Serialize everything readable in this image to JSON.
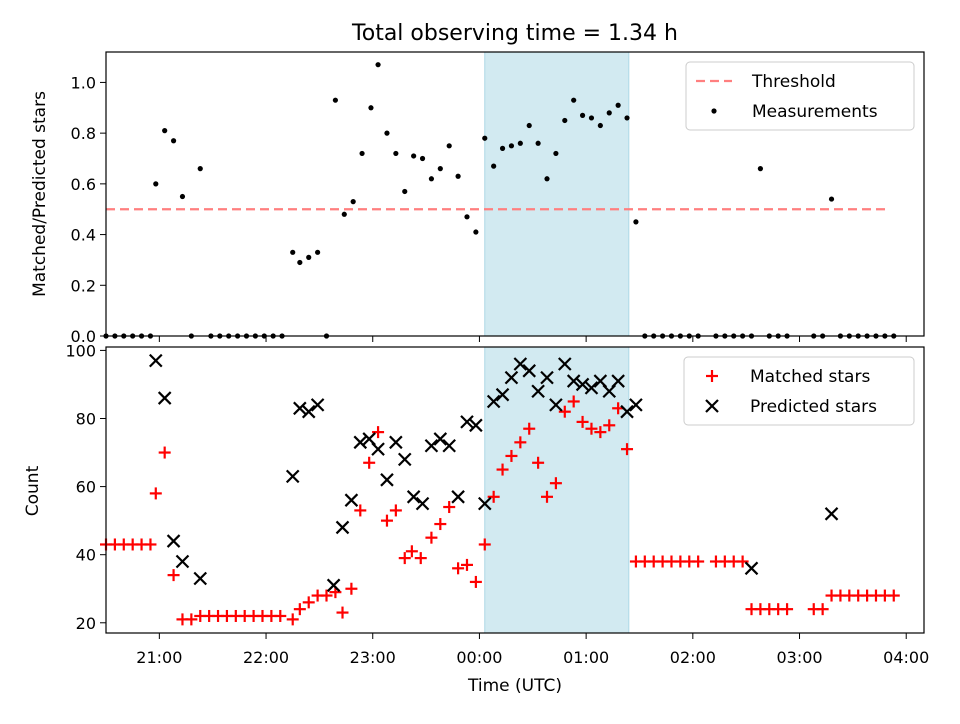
{
  "title": "Total observing time = 1.34 h",
  "colors": {
    "threshold": "#ff7f7f",
    "measurements": "#000000",
    "matched": "#ff0000",
    "predicted": "#000000",
    "span": "#add8e6"
  },
  "chart_data": [
    {
      "type": "scatter",
      "ylabel": "Matched/Predicted stars",
      "xlim": [
        "20:30",
        "04:10"
      ],
      "ylim": [
        0,
        1.12
      ],
      "yticks": [
        "0.0",
        "0.2",
        "0.4",
        "0.6",
        "0.8",
        "1.0"
      ],
      "highlight_span": [
        "00:03",
        "01:24"
      ],
      "threshold": {
        "y": 0.5,
        "x": [
          "20:30",
          "03:50"
        ]
      },
      "legend": {
        "placement": "top-right",
        "entries": [
          "Threshold",
          "Measurements"
        ]
      },
      "series": [
        {
          "name": "Measurements",
          "points": [
            [
              "20:30",
              0
            ],
            [
              "20:35",
              0
            ],
            [
              "20:40",
              0
            ],
            [
              "20:45",
              0
            ],
            [
              "20:50",
              0
            ],
            [
              "20:55",
              0
            ],
            [
              "20:58",
              0.6
            ],
            [
              "21:03",
              0.81
            ],
            [
              "21:08",
              0.77
            ],
            [
              "21:13",
              0.55
            ],
            [
              "21:18",
              0
            ],
            [
              "21:23",
              0.66
            ],
            [
              "21:29",
              0
            ],
            [
              "21:34",
              0
            ],
            [
              "21:39",
              0
            ],
            [
              "21:44",
              0
            ],
            [
              "21:49",
              0
            ],
            [
              "21:54",
              0
            ],
            [
              "21:59",
              0
            ],
            [
              "22:04",
              0
            ],
            [
              "22:09",
              0
            ],
            [
              "22:15",
              0.33
            ],
            [
              "22:19",
              0.29
            ],
            [
              "22:24",
              0.31
            ],
            [
              "22:29",
              0.33
            ],
            [
              "22:34",
              0
            ],
            [
              "22:39",
              0.93
            ],
            [
              "22:44",
              0.48
            ],
            [
              "22:49",
              0.53
            ],
            [
              "22:54",
              0.72
            ],
            [
              "22:59",
              0.9
            ],
            [
              "23:03",
              1.07
            ],
            [
              "23:08",
              0.8
            ],
            [
              "23:13",
              0.72
            ],
            [
              "23:18",
              0.57
            ],
            [
              "23:23",
              0.71
            ],
            [
              "23:28",
              0.7
            ],
            [
              "23:33",
              0.62
            ],
            [
              "23:38",
              0.66
            ],
            [
              "23:43",
              0.75
            ],
            [
              "23:48",
              0.63
            ],
            [
              "23:53",
              0.47
            ],
            [
              "23:58",
              0.41
            ],
            [
              "00:03",
              0.78
            ],
            [
              "00:08",
              0.67
            ],
            [
              "00:13",
              0.74
            ],
            [
              "00:18",
              0.75
            ],
            [
              "00:23",
              0.76
            ],
            [
              "00:28",
              0.83
            ],
            [
              "00:33",
              0.76
            ],
            [
              "00:38",
              0.62
            ],
            [
              "00:43",
              0.72
            ],
            [
              "00:48",
              0.85
            ],
            [
              "00:53",
              0.93
            ],
            [
              "00:58",
              0.87
            ],
            [
              "01:03",
              0.86
            ],
            [
              "01:08",
              0.83
            ],
            [
              "01:13",
              0.88
            ],
            [
              "01:18",
              0.91
            ],
            [
              "01:23",
              0.86
            ],
            [
              "01:28",
              0.45
            ],
            [
              "01:33",
              0
            ],
            [
              "01:38",
              0
            ],
            [
              "01:43",
              0
            ],
            [
              "01:48",
              0
            ],
            [
              "01:53",
              0
            ],
            [
              "01:58",
              0
            ],
            [
              "02:03",
              0
            ],
            [
              "02:13",
              0
            ],
            [
              "02:18",
              0
            ],
            [
              "02:23",
              0
            ],
            [
              "02:28",
              0
            ],
            [
              "02:33",
              0
            ],
            [
              "02:38",
              0.66
            ],
            [
              "02:43",
              0
            ],
            [
              "02:48",
              0
            ],
            [
              "02:53",
              0
            ],
            [
              "03:08",
              0
            ],
            [
              "03:13",
              0
            ],
            [
              "03:18",
              0.54
            ],
            [
              "03:23",
              0
            ],
            [
              "03:28",
              0
            ],
            [
              "03:33",
              0
            ],
            [
              "03:38",
              0
            ],
            [
              "03:43",
              0
            ],
            [
              "03:48",
              0
            ],
            [
              "03:53",
              0
            ]
          ]
        }
      ]
    },
    {
      "type": "scatter",
      "xlabel": "Time (UTC)",
      "ylabel": "Count",
      "xlim": [
        "20:30",
        "04:10"
      ],
      "ylim": [
        17,
        101
      ],
      "yticks": [
        "20",
        "40",
        "60",
        "80",
        "100"
      ],
      "xticks": [
        "21:00",
        "22:00",
        "23:00",
        "00:00",
        "01:00",
        "02:00",
        "03:00",
        "04:00"
      ],
      "highlight_span": [
        "00:03",
        "01:24"
      ],
      "legend": {
        "placement": "top-right",
        "entries": [
          "Matched stars",
          "Predicted stars"
        ]
      },
      "series": [
        {
          "name": "Matched stars",
          "marker": "plus",
          "points": [
            [
              "20:30",
              43
            ],
            [
              "20:35",
              43
            ],
            [
              "20:40",
              43
            ],
            [
              "20:45",
              43
            ],
            [
              "20:50",
              43
            ],
            [
              "20:55",
              43
            ],
            [
              "20:58",
              58
            ],
            [
              "21:03",
              70
            ],
            [
              "21:08",
              34
            ],
            [
              "21:13",
              21
            ],
            [
              "21:18",
              21
            ],
            [
              "21:23",
              22
            ],
            [
              "21:28",
              22
            ],
            [
              "21:33",
              22
            ],
            [
              "21:38",
              22
            ],
            [
              "21:43",
              22
            ],
            [
              "21:48",
              22
            ],
            [
              "21:53",
              22
            ],
            [
              "21:58",
              22
            ],
            [
              "22:03",
              22
            ],
            [
              "22:08",
              22
            ],
            [
              "22:15",
              21
            ],
            [
              "22:19",
              24
            ],
            [
              "22:24",
              26
            ],
            [
              "22:29",
              28
            ],
            [
              "22:34",
              28
            ],
            [
              "22:39",
              29
            ],
            [
              "22:43",
              23
            ],
            [
              "22:48",
              30
            ],
            [
              "22:53",
              53
            ],
            [
              "22:58",
              67
            ],
            [
              "23:03",
              76
            ],
            [
              "23:08",
              50
            ],
            [
              "23:13",
              53
            ],
            [
              "23:18",
              39
            ],
            [
              "23:22",
              41
            ],
            [
              "23:27",
              39
            ],
            [
              "23:33",
              45
            ],
            [
              "23:38",
              49
            ],
            [
              "23:43",
              54
            ],
            [
              "23:48",
              36
            ],
            [
              "23:53",
              37
            ],
            [
              "23:58",
              32
            ],
            [
              "00:03",
              43
            ],
            [
              "00:08",
              57
            ],
            [
              "00:13",
              65
            ],
            [
              "00:18",
              69
            ],
            [
              "00:23",
              73
            ],
            [
              "00:28",
              77
            ],
            [
              "00:33",
              67
            ],
            [
              "00:38",
              57
            ],
            [
              "00:43",
              61
            ],
            [
              "00:48",
              82
            ],
            [
              "00:53",
              85
            ],
            [
              "00:58",
              79
            ],
            [
              "01:03",
              77
            ],
            [
              "01:08",
              76
            ],
            [
              "01:13",
              78
            ],
            [
              "01:18",
              83
            ],
            [
              "01:23",
              71
            ],
            [
              "01:28",
              38
            ],
            [
              "01:33",
              38
            ],
            [
              "01:38",
              38
            ],
            [
              "01:43",
              38
            ],
            [
              "01:48",
              38
            ],
            [
              "01:53",
              38
            ],
            [
              "01:58",
              38
            ],
            [
              "02:03",
              38
            ],
            [
              "02:13",
              38
            ],
            [
              "02:18",
              38
            ],
            [
              "02:23",
              38
            ],
            [
              "02:28",
              38
            ],
            [
              "02:33",
              24
            ],
            [
              "02:38",
              24
            ],
            [
              "02:43",
              24
            ],
            [
              "02:48",
              24
            ],
            [
              "02:53",
              24
            ],
            [
              "03:08",
              24
            ],
            [
              "03:13",
              24
            ],
            [
              "03:18",
              28
            ],
            [
              "03:23",
              28
            ],
            [
              "03:28",
              28
            ],
            [
              "03:33",
              28
            ],
            [
              "03:38",
              28
            ],
            [
              "03:43",
              28
            ],
            [
              "03:48",
              28
            ],
            [
              "03:53",
              28
            ]
          ]
        },
        {
          "name": "Predicted stars",
          "marker": "x",
          "points": [
            [
              "20:58",
              97
            ],
            [
              "21:03",
              86
            ],
            [
              "21:08",
              44
            ],
            [
              "21:13",
              38
            ],
            [
              "21:23",
              33
            ],
            [
              "22:15",
              63
            ],
            [
              "22:19",
              83
            ],
            [
              "22:24",
              82
            ],
            [
              "22:29",
              84
            ],
            [
              "22:38",
              31
            ],
            [
              "22:43",
              48
            ],
            [
              "22:48",
              56
            ],
            [
              "22:53",
              73
            ],
            [
              "22:58",
              74
            ],
            [
              "23:03",
              71
            ],
            [
              "23:08",
              62
            ],
            [
              "23:13",
              73
            ],
            [
              "23:18",
              68
            ],
            [
              "23:23",
              57
            ],
            [
              "23:28",
              55
            ],
            [
              "23:33",
              72
            ],
            [
              "23:38",
              74
            ],
            [
              "23:43",
              72
            ],
            [
              "23:48",
              57
            ],
            [
              "23:53",
              79
            ],
            [
              "23:58",
              78
            ],
            [
              "00:03",
              55
            ],
            [
              "00:08",
              85
            ],
            [
              "00:13",
              87
            ],
            [
              "00:18",
              92
            ],
            [
              "00:23",
              96
            ],
            [
              "00:28",
              94
            ],
            [
              "00:33",
              88
            ],
            [
              "00:38",
              92
            ],
            [
              "00:43",
              84
            ],
            [
              "00:48",
              96
            ],
            [
              "00:53",
              91
            ],
            [
              "00:58",
              90
            ],
            [
              "01:03",
              89
            ],
            [
              "01:08",
              91
            ],
            [
              "01:13",
              88
            ],
            [
              "01:18",
              91
            ],
            [
              "01:23",
              82
            ],
            [
              "01:28",
              84
            ],
            [
              "02:33",
              36
            ],
            [
              "03:18",
              52
            ]
          ]
        }
      ]
    }
  ]
}
